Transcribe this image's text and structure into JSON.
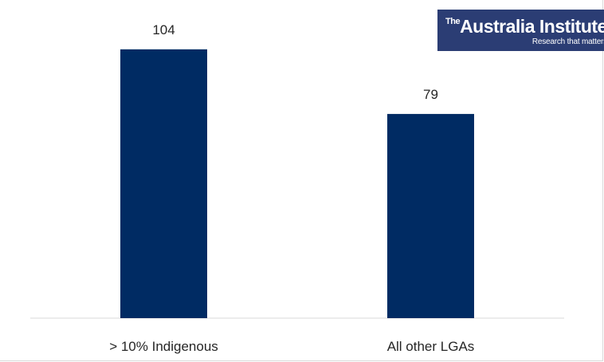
{
  "logo": {
    "prefix": "The",
    "name": "Australia Institute",
    "tagline": "Research that matters",
    "background": "#2b3d74"
  },
  "chart_data": {
    "type": "bar",
    "categories": [
      "> 10% Indigenous",
      "All other LGAs"
    ],
    "values": [
      104,
      79
    ],
    "data_labels": [
      "104",
      "79"
    ],
    "title": "",
    "xlabel": "",
    "ylabel": "",
    "ylim": [
      0,
      120
    ],
    "grid": false,
    "bar_color": "#002b63"
  }
}
